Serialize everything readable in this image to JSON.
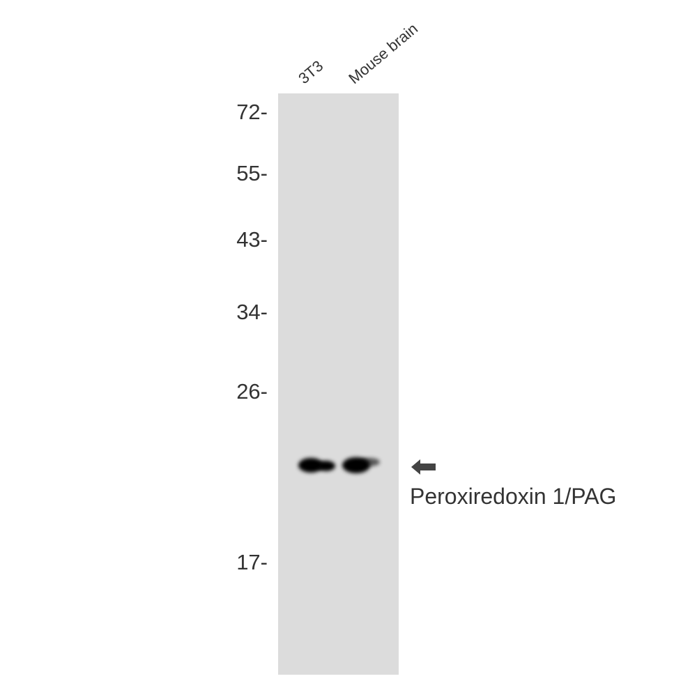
{
  "lanes": [
    {
      "label": "3T3"
    },
    {
      "label": "Mouse brain"
    }
  ],
  "markers": [
    "72-",
    "55-",
    "43-",
    "34-",
    "26-",
    "17-"
  ],
  "target": {
    "label": "Peroxiredoxin 1/PAG",
    "icon": "arrow-left-icon",
    "arrow_color": "#444444"
  },
  "colors": {
    "membrane": "#dcdcdc",
    "band": "#000000"
  }
}
